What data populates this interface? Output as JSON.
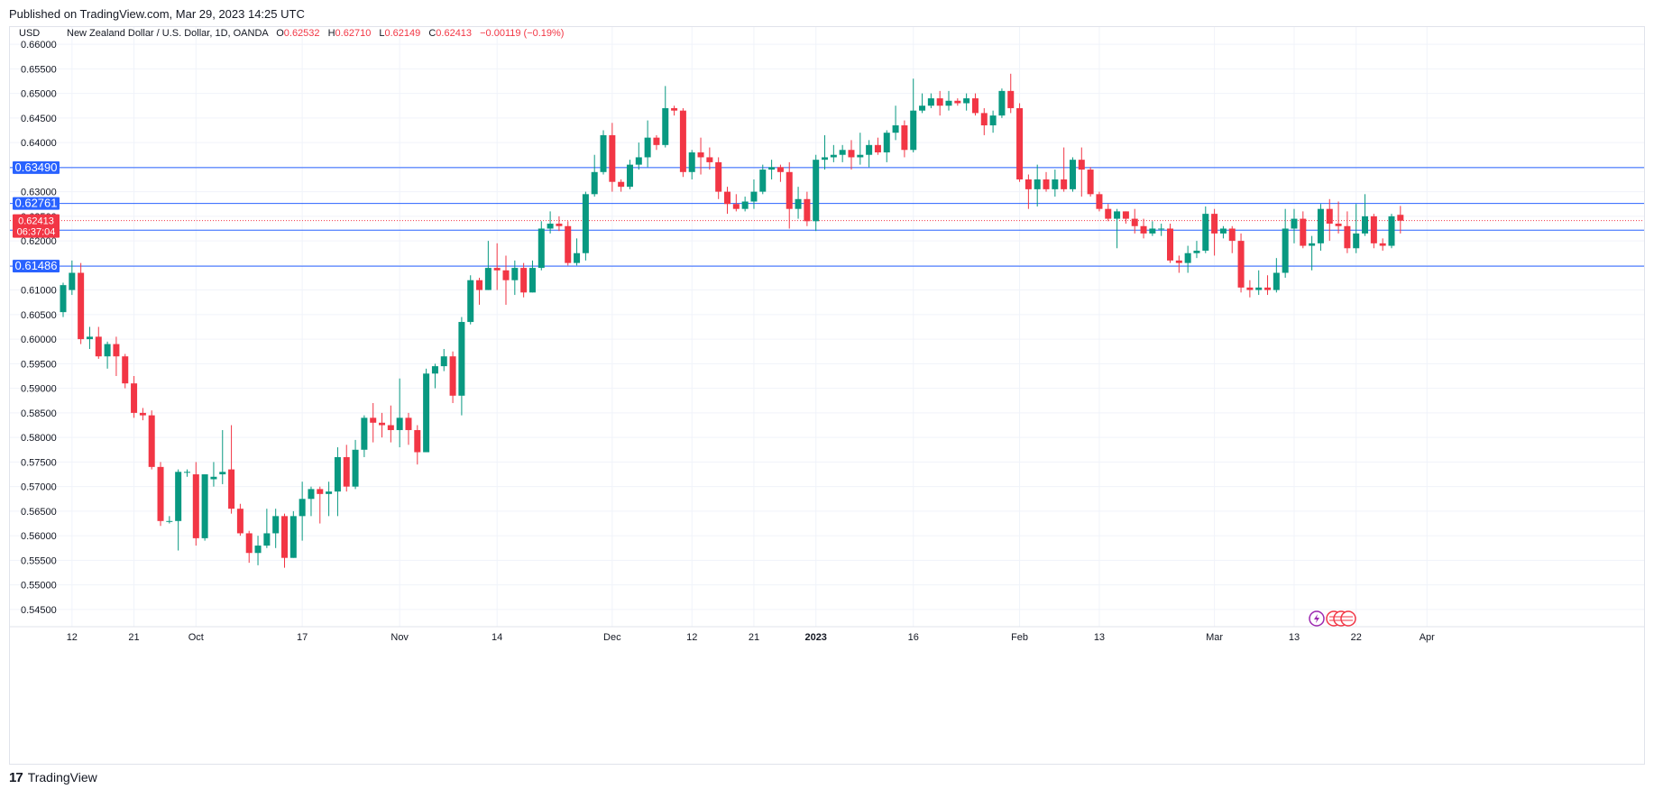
{
  "header": {
    "published": "Published on TradingView.com, Mar 29, 2023 14:25 UTC"
  },
  "chart_data": {
    "type": "candlestick",
    "currency_label": "USD",
    "symbol": "New Zealand Dollar / U.S. Dollar, 1D, OANDA",
    "ohlc_display": {
      "o_label": "O",
      "o": "0.62532",
      "h_label": "H",
      "h": "0.62710",
      "l_label": "L",
      "l": "0.62149",
      "c_label": "C",
      "c": "0.62413",
      "change": "−0.00119 (−0.19%)"
    },
    "ylim": [
      0.5415,
      0.6635
    ],
    "y_ticks": [
      "0.66000",
      "0.65500",
      "0.65000",
      "0.64500",
      "0.64000",
      "0.63500",
      "0.63000",
      "0.62500",
      "0.62000",
      "0.61500",
      "0.61000",
      "0.60500",
      "0.60000",
      "0.59500",
      "0.59000",
      "0.58500",
      "0.58000",
      "0.57500",
      "0.57000",
      "0.56500",
      "0.56000",
      "0.55500",
      "0.55000",
      "0.54500"
    ],
    "x_ticks": [
      {
        "label": "12",
        "i": 1
      },
      {
        "label": "21",
        "i": 8
      },
      {
        "label": "Oct",
        "i": 15
      },
      {
        "label": "17",
        "i": 27
      },
      {
        "label": "Nov",
        "i": 38
      },
      {
        "label": "14",
        "i": 49
      },
      {
        "label": "Dec",
        "i": 62
      },
      {
        "label": "12",
        "i": 71
      },
      {
        "label": "21",
        "i": 78
      },
      {
        "label": "2023",
        "i": 85,
        "bold": true
      },
      {
        "label": "16",
        "i": 96
      },
      {
        "label": "Feb",
        "i": 108
      },
      {
        "label": "13",
        "i": 117
      },
      {
        "label": "Mar",
        "i": 130
      },
      {
        "label": "13",
        "i": 139
      },
      {
        "label": "22",
        "i": 146
      },
      {
        "label": "Apr",
        "i": 154
      }
    ],
    "levels": [
      {
        "value": 0.6349,
        "label": "0.63490"
      },
      {
        "value": 0.62761,
        "label": "0.62761"
      },
      {
        "value": 0.62218,
        "label": "0.62218"
      },
      {
        "value": 0.61486,
        "label": "0.61486"
      }
    ],
    "last_price": {
      "value": 0.62413,
      "label": "0.62413",
      "countdown": "06:37:04"
    },
    "colors": {
      "up": "#089981",
      "down": "#f23645",
      "level": "#2962ff",
      "grid": "#f0f3fa",
      "axis_text": "#131722"
    },
    "candles": [
      [
        0.6055,
        0.611,
        0.6045,
        0.6115
      ],
      [
        0.61,
        0.6135,
        0.609,
        0.616
      ],
      [
        0.6135,
        0.6,
        0.599,
        0.6155
      ],
      [
        0.6,
        0.6005,
        0.598,
        0.6025
      ],
      [
        0.6005,
        0.5965,
        0.596,
        0.6025
      ],
      [
        0.5965,
        0.599,
        0.594,
        0.5995
      ],
      [
        0.599,
        0.5965,
        0.5925,
        0.6005
      ],
      [
        0.5965,
        0.591,
        0.59,
        0.597
      ],
      [
        0.591,
        0.585,
        0.584,
        0.5925
      ],
      [
        0.585,
        0.5845,
        0.5835,
        0.586
      ],
      [
        0.5845,
        0.574,
        0.5735,
        0.5855
      ],
      [
        0.574,
        0.563,
        0.562,
        0.575
      ],
      [
        0.563,
        0.563,
        0.5625,
        0.564
      ],
      [
        0.563,
        0.573,
        0.557,
        0.5735
      ],
      [
        0.573,
        0.573,
        0.572,
        0.5735
      ],
      [
        0.5725,
        0.5595,
        0.558,
        0.575
      ],
      [
        0.5595,
        0.5725,
        0.559,
        0.5725
      ],
      [
        0.5715,
        0.572,
        0.57,
        0.575
      ],
      [
        0.5725,
        0.573,
        0.5705,
        0.5815
      ],
      [
        0.5735,
        0.5655,
        0.5645,
        0.5825
      ],
      [
        0.5655,
        0.5605,
        0.56,
        0.5665
      ],
      [
        0.5605,
        0.5565,
        0.5545,
        0.561
      ],
      [
        0.5565,
        0.558,
        0.554,
        0.56
      ],
      [
        0.558,
        0.5605,
        0.5575,
        0.5655
      ],
      [
        0.5605,
        0.564,
        0.5575,
        0.5655
      ],
      [
        0.564,
        0.5555,
        0.5535,
        0.5645
      ],
      [
        0.5555,
        0.564,
        0.5555,
        0.565
      ],
      [
        0.564,
        0.5675,
        0.559,
        0.571
      ],
      [
        0.5675,
        0.5695,
        0.564,
        0.57
      ],
      [
        0.5695,
        0.5685,
        0.5625,
        0.57
      ],
      [
        0.5685,
        0.569,
        0.564,
        0.571
      ],
      [
        0.569,
        0.576,
        0.564,
        0.578
      ],
      [
        0.576,
        0.57,
        0.569,
        0.5785
      ],
      [
        0.57,
        0.5775,
        0.5695,
        0.5795
      ],
      [
        0.5775,
        0.584,
        0.576,
        0.5845
      ],
      [
        0.584,
        0.583,
        0.579,
        0.587
      ],
      [
        0.583,
        0.5825,
        0.58,
        0.585
      ],
      [
        0.5825,
        0.5815,
        0.579,
        0.5865
      ],
      [
        0.5815,
        0.584,
        0.578,
        0.592
      ],
      [
        0.584,
        0.5815,
        0.5785,
        0.585
      ],
      [
        0.5815,
        0.577,
        0.5745,
        0.5825
      ],
      [
        0.577,
        0.593,
        0.577,
        0.594
      ],
      [
        0.593,
        0.5945,
        0.59,
        0.595
      ],
      [
        0.5945,
        0.5965,
        0.5935,
        0.598
      ],
      [
        0.5965,
        0.5885,
        0.587,
        0.5975
      ],
      [
        0.5885,
        0.6035,
        0.5845,
        0.6045
      ],
      [
        0.6035,
        0.612,
        0.603,
        0.613
      ],
      [
        0.612,
        0.61,
        0.607,
        0.6125
      ],
      [
        0.61,
        0.6145,
        0.61,
        0.62
      ],
      [
        0.6145,
        0.614,
        0.61,
        0.6195
      ],
      [
        0.614,
        0.612,
        0.607,
        0.617
      ],
      [
        0.612,
        0.6145,
        0.609,
        0.616
      ],
      [
        0.6145,
        0.6095,
        0.6085,
        0.6155
      ],
      [
        0.6095,
        0.6145,
        0.6095,
        0.616
      ],
      [
        0.6145,
        0.6225,
        0.614,
        0.624
      ],
      [
        0.6225,
        0.6235,
        0.6215,
        0.626
      ],
      [
        0.6235,
        0.623,
        0.622,
        0.625
      ],
      [
        0.623,
        0.6155,
        0.615,
        0.624
      ],
      [
        0.6155,
        0.6175,
        0.615,
        0.6205
      ],
      [
        0.6175,
        0.6295,
        0.616,
        0.63
      ],
      [
        0.6295,
        0.634,
        0.629,
        0.6375
      ],
      [
        0.634,
        0.6415,
        0.6335,
        0.6425
      ],
      [
        0.6415,
        0.632,
        0.63,
        0.644
      ],
      [
        0.632,
        0.631,
        0.63,
        0.6325
      ],
      [
        0.631,
        0.6355,
        0.6305,
        0.6365
      ],
      [
        0.6355,
        0.637,
        0.6345,
        0.64
      ],
      [
        0.637,
        0.641,
        0.635,
        0.6445
      ],
      [
        0.641,
        0.6395,
        0.6385,
        0.6415
      ],
      [
        0.6395,
        0.647,
        0.639,
        0.6515
      ],
      [
        0.647,
        0.6465,
        0.6455,
        0.6475
      ],
      [
        0.6465,
        0.634,
        0.633,
        0.647
      ],
      [
        0.634,
        0.638,
        0.6325,
        0.6385
      ],
      [
        0.638,
        0.637,
        0.6335,
        0.641
      ],
      [
        0.637,
        0.636,
        0.6345,
        0.639
      ],
      [
        0.636,
        0.63,
        0.6285,
        0.637
      ],
      [
        0.63,
        0.6275,
        0.6255,
        0.631
      ],
      [
        0.6275,
        0.6265,
        0.626,
        0.6295
      ],
      [
        0.6265,
        0.628,
        0.626,
        0.629
      ],
      [
        0.628,
        0.63,
        0.6265,
        0.6325
      ],
      [
        0.63,
        0.6345,
        0.6295,
        0.6355
      ],
      [
        0.6345,
        0.635,
        0.6325,
        0.6365
      ],
      [
        0.635,
        0.634,
        0.632,
        0.6355
      ],
      [
        0.634,
        0.6265,
        0.6225,
        0.636
      ],
      [
        0.6265,
        0.6285,
        0.6245,
        0.631
      ],
      [
        0.6285,
        0.624,
        0.623,
        0.63
      ],
      [
        0.624,
        0.6365,
        0.622,
        0.6375
      ],
      [
        0.6365,
        0.637,
        0.6345,
        0.6415
      ],
      [
        0.637,
        0.6375,
        0.636,
        0.6395
      ],
      [
        0.6375,
        0.6385,
        0.636,
        0.6395
      ],
      [
        0.6385,
        0.637,
        0.6345,
        0.6405
      ],
      [
        0.637,
        0.6375,
        0.6355,
        0.642
      ],
      [
        0.6375,
        0.6395,
        0.635,
        0.6405
      ],
      [
        0.6395,
        0.638,
        0.6375,
        0.641
      ],
      [
        0.638,
        0.642,
        0.636,
        0.6425
      ],
      [
        0.642,
        0.6435,
        0.6405,
        0.6475
      ],
      [
        0.6435,
        0.6385,
        0.637,
        0.6445
      ],
      [
        0.6385,
        0.6465,
        0.638,
        0.653
      ],
      [
        0.6465,
        0.6475,
        0.646,
        0.65
      ],
      [
        0.6475,
        0.649,
        0.647,
        0.65
      ],
      [
        0.649,
        0.6475,
        0.6455,
        0.6505
      ],
      [
        0.6475,
        0.6485,
        0.6465,
        0.6505
      ],
      [
        0.6485,
        0.648,
        0.6475,
        0.649
      ],
      [
        0.648,
        0.649,
        0.6465,
        0.65
      ],
      [
        0.649,
        0.646,
        0.6455,
        0.65
      ],
      [
        0.646,
        0.6435,
        0.6415,
        0.647
      ],
      [
        0.6435,
        0.6455,
        0.642,
        0.6465
      ],
      [
        0.6455,
        0.6505,
        0.645,
        0.651
      ],
      [
        0.6505,
        0.647,
        0.646,
        0.654
      ],
      [
        0.647,
        0.6325,
        0.632,
        0.648
      ],
      [
        0.6325,
        0.6305,
        0.6265,
        0.6335
      ],
      [
        0.6305,
        0.6325,
        0.627,
        0.6355
      ],
      [
        0.6325,
        0.6305,
        0.63,
        0.634
      ],
      [
        0.6305,
        0.6325,
        0.629,
        0.6345
      ],
      [
        0.6325,
        0.6305,
        0.63,
        0.639
      ],
      [
        0.6305,
        0.6365,
        0.63,
        0.637
      ],
      [
        0.6365,
        0.6345,
        0.629,
        0.639
      ],
      [
        0.6345,
        0.6295,
        0.629,
        0.635
      ],
      [
        0.6295,
        0.6265,
        0.626,
        0.63
      ],
      [
        0.6265,
        0.6245,
        0.624,
        0.6275
      ],
      [
        0.6245,
        0.626,
        0.6185,
        0.6265
      ],
      [
        0.626,
        0.6245,
        0.6235,
        0.626
      ],
      [
        0.6245,
        0.623,
        0.6215,
        0.6265
      ],
      [
        0.623,
        0.6215,
        0.6205,
        0.6245
      ],
      [
        0.6215,
        0.6225,
        0.621,
        0.624
      ],
      [
        0.6225,
        0.6225,
        0.621,
        0.6235
      ],
      [
        0.6225,
        0.616,
        0.6155,
        0.6235
      ],
      [
        0.616,
        0.6155,
        0.6135,
        0.617
      ],
      [
        0.6155,
        0.6175,
        0.6135,
        0.619
      ],
      [
        0.6175,
        0.618,
        0.6165,
        0.62
      ],
      [
        0.618,
        0.6255,
        0.6175,
        0.627
      ],
      [
        0.6255,
        0.6215,
        0.617,
        0.6265
      ],
      [
        0.6215,
        0.6225,
        0.6205,
        0.623
      ],
      [
        0.6225,
        0.62,
        0.6175,
        0.623
      ],
      [
        0.62,
        0.6105,
        0.6095,
        0.6215
      ],
      [
        0.6105,
        0.61,
        0.6085,
        0.612
      ],
      [
        0.61,
        0.6105,
        0.609,
        0.614
      ],
      [
        0.6105,
        0.61,
        0.609,
        0.613
      ],
      [
        0.61,
        0.6135,
        0.6095,
        0.6165
      ],
      [
        0.6135,
        0.6225,
        0.6125,
        0.6265
      ],
      [
        0.6225,
        0.6245,
        0.6195,
        0.6265
      ],
      [
        0.6245,
        0.619,
        0.6185,
        0.626
      ],
      [
        0.619,
        0.6195,
        0.614,
        0.621
      ],
      [
        0.6195,
        0.6265,
        0.618,
        0.6275
      ],
      [
        0.6265,
        0.6235,
        0.62,
        0.6285
      ],
      [
        0.6235,
        0.623,
        0.6215,
        0.628
      ],
      [
        0.623,
        0.6185,
        0.6175,
        0.626
      ],
      [
        0.6185,
        0.6215,
        0.6175,
        0.6275
      ],
      [
        0.6215,
        0.625,
        0.621,
        0.6295
      ],
      [
        0.625,
        0.6195,
        0.6185,
        0.6255
      ],
      [
        0.6195,
        0.619,
        0.618,
        0.6205
      ],
      [
        0.619,
        0.625,
        0.6185,
        0.6255
      ],
      [
        0.6253,
        0.6241,
        0.6215,
        0.6271
      ]
    ]
  },
  "footer": {
    "brand": "TradingView",
    "brand_mark": "17"
  }
}
